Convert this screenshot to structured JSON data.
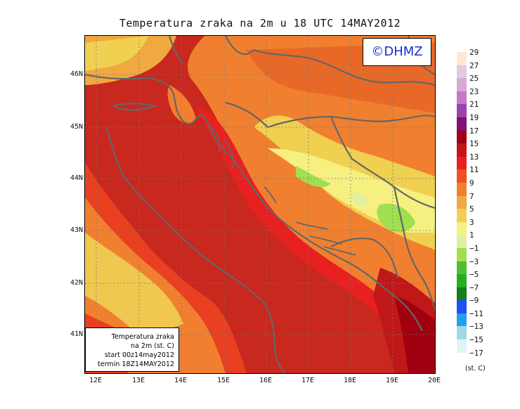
{
  "title": "Temperatura zraka na 2m u 18 UTC 14MAY2012",
  "logo_text": "©DHMZ",
  "info_box": {
    "line1": "Temperatura zraka",
    "line2": "na 2m (st. C)",
    "line3": "start 00z14may2012",
    "line4": "termin 18Z14MAY2012"
  },
  "lat_labels": [
    "46N",
    "45N",
    "44N",
    "43N",
    "42N",
    "41N"
  ],
  "lon_labels": [
    "12E",
    "13E",
    "14E",
    "15E",
    "16E",
    "17E",
    "18E",
    "19E",
    "20E"
  ],
  "legend": {
    "unit": "(st. C)",
    "labels": [
      "29",
      "27",
      "25",
      "23",
      "21",
      "19",
      "17",
      "15",
      "13",
      "11",
      "9",
      "7",
      "5",
      "3",
      "1",
      "−1",
      "−3",
      "−5",
      "−7",
      "−9",
      "−11",
      "−13",
      "−15",
      "−17"
    ],
    "colors": [
      "#fde8d8",
      "#e4c8e0",
      "#d8a8d8",
      "#c878c8",
      "#a040b0",
      "#801078",
      "#a00010",
      "#c01818",
      "#e82020",
      "#f05020",
      "#f08030",
      "#f0a840",
      "#f0d050",
      "#f5f080",
      "#e0f0a0",
      "#a0e050",
      "#50c030",
      "#20b020",
      "#108018",
      "#2050f0",
      "#20a0f0",
      "#a0d8e8",
      "#e0f4f8"
    ],
    "color_notes": "Colours ordered top to bottom matching label bands."
  },
  "colors": {
    "sea_warm": "#c8281e",
    "coast_warm": "#e84020",
    "land_orange": "#f08030",
    "land_light": "#f0c850",
    "land_yellow": "#f5f080",
    "land_green": "#a0e050",
    "border": "#666666"
  }
}
